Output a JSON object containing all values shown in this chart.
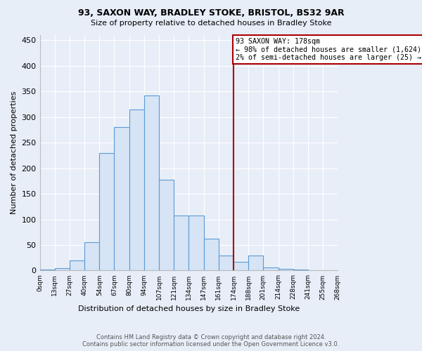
{
  "title1": "93, SAXON WAY, BRADLEY STOKE, BRISTOL, BS32 9AR",
  "title2": "Size of property relative to detached houses in Bradley Stoke",
  "xlabel": "Distribution of detached houses by size in Bradley Stoke",
  "ylabel": "Number of detached properties",
  "bin_labels": [
    "0sqm",
    "13sqm",
    "27sqm",
    "40sqm",
    "54sqm",
    "67sqm",
    "80sqm",
    "94sqm",
    "107sqm",
    "121sqm",
    "134sqm",
    "147sqm",
    "161sqm",
    "174sqm",
    "188sqm",
    "201sqm",
    "214sqm",
    "228sqm",
    "241sqm",
    "255sqm",
    "268sqm"
  ],
  "bar_heights": [
    2,
    5,
    20,
    55,
    230,
    280,
    315,
    342,
    177,
    108,
    108,
    62,
    30,
    17,
    30,
    6,
    4,
    2,
    1,
    1
  ],
  "bar_color": "#d6e4f5",
  "bar_edge_color": "#5b9bd5",
  "vline_color": "#aa0000",
  "annotation_text": "93 SAXON WAY: 178sqm\n← 98% of detached houses are smaller (1,624)\n2% of semi-detached houses are larger (25) →",
  "annotation_box_color": "#ffffff",
  "annotation_border_color": "#aa0000",
  "ylim": [
    0,
    460
  ],
  "yticks": [
    0,
    50,
    100,
    150,
    200,
    250,
    300,
    350,
    400,
    450
  ],
  "footnote": "Contains HM Land Registry data © Crown copyright and database right 2024.\nContains public sector information licensed under the Open Government Licence v3.0.",
  "bg_color": "#e8eef8",
  "plot_bg_color": "#e8eef8",
  "grid_color": "#ffffff",
  "vline_index": 13
}
